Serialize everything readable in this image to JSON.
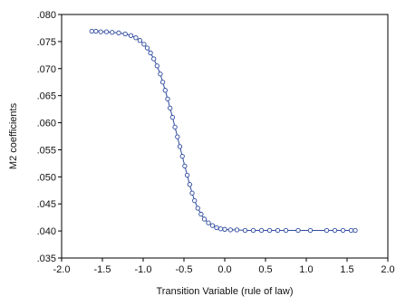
{
  "chart_data": {
    "type": "line",
    "xlabel": "Transition Variable (rule of law)",
    "ylabel": "M2 coefficients",
    "xlim": [
      -2.0,
      2.0
    ],
    "ylim": [
      0.035,
      0.08
    ],
    "grid": false,
    "markers": "hollow-circle",
    "xticks": [
      "-2.0",
      "-1.5",
      "-1.0",
      "-0.5",
      "0.0",
      "0.5",
      "1.0",
      "1.5",
      "2.0"
    ],
    "yticks": [
      ".035",
      ".040",
      ".045",
      ".050",
      ".055",
      ".060",
      ".065",
      ".070",
      ".075",
      ".080"
    ],
    "colors": {
      "series": "#2e4a9e",
      "axes": "#000000"
    },
    "series": [
      {
        "x": [
          -1.63,
          -1.58,
          -1.52,
          -1.45,
          -1.38,
          -1.3,
          -1.22,
          -1.15,
          -1.09,
          -1.04,
          -0.99,
          -0.95,
          -0.91,
          -0.87,
          -0.83,
          -0.79,
          -0.76,
          -0.73,
          -0.7,
          -0.67,
          -0.64,
          -0.61,
          -0.58,
          -0.55,
          -0.52,
          -0.49,
          -0.46,
          -0.43,
          -0.4,
          -0.37,
          -0.33,
          -0.29,
          -0.25,
          -0.2,
          -0.15,
          -0.1,
          -0.05,
          0.0,
          0.07,
          0.15,
          0.25,
          0.35,
          0.45,
          0.55,
          0.65,
          0.75,
          0.9,
          1.05,
          1.25,
          1.35,
          1.45,
          1.55,
          1.6
        ],
        "y": [
          0.0769,
          0.0769,
          0.0768,
          0.0768,
          0.0767,
          0.0766,
          0.0764,
          0.0761,
          0.0757,
          0.0752,
          0.0745,
          0.0738,
          0.0729,
          0.0718,
          0.0705,
          0.069,
          0.0675,
          0.066,
          0.0644,
          0.0627,
          0.061,
          0.0592,
          0.0574,
          0.0556,
          0.0538,
          0.052,
          0.0503,
          0.0486,
          0.047,
          0.0456,
          0.0442,
          0.0431,
          0.0422,
          0.0415,
          0.041,
          0.0406,
          0.0404,
          0.0403,
          0.0402,
          0.0402,
          0.0401,
          0.0401,
          0.0401,
          0.0401,
          0.0401,
          0.0401,
          0.0401,
          0.0401,
          0.0401,
          0.0401,
          0.0401,
          0.0401,
          0.0401
        ]
      }
    ]
  }
}
